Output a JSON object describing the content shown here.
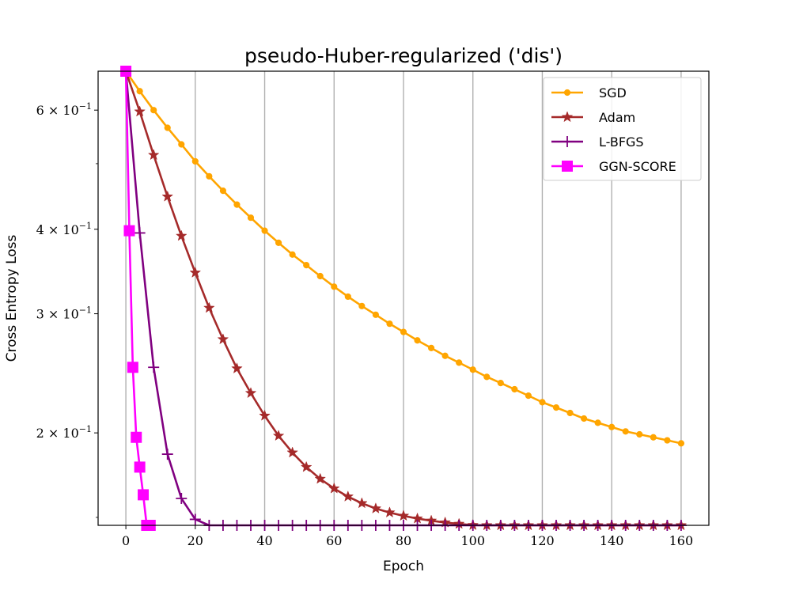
{
  "chart_data": {
    "type": "line",
    "title": "pseudo-Huber-regularized ('dis')",
    "xlabel": "Epoch",
    "ylabel": "Cross Entropy Loss",
    "y_scale": "log",
    "xlim": [
      -8,
      168
    ],
    "ylim": [
      0.146,
      0.685
    ],
    "grid": "vertical",
    "legend_position": "top-right",
    "x_ticks": [
      0,
      20,
      40,
      60,
      80,
      100,
      120,
      140,
      160
    ],
    "y_ticks": [
      {
        "value": 0.6,
        "mantissa": "6",
        "exponent": "−1"
      },
      {
        "value": 0.4,
        "mantissa": "4",
        "exponent": "−1"
      },
      {
        "value": 0.3,
        "mantissa": "3",
        "exponent": "−1"
      },
      {
        "value": 0.2,
        "mantissa": "2",
        "exponent": "−1"
      }
    ],
    "y_tick_base": "10",
    "y_tick_times": "×",
    "series": [
      {
        "name": "SGD",
        "color": "#FFA500",
        "marker": "circle",
        "x": [
          0,
          4,
          8,
          12,
          16,
          20,
          24,
          28,
          32,
          36,
          40,
          44,
          48,
          52,
          56,
          60,
          64,
          68,
          72,
          76,
          80,
          84,
          88,
          92,
          96,
          100,
          104,
          108,
          112,
          116,
          120,
          124,
          128,
          132,
          136,
          140,
          144,
          148,
          152,
          156,
          160
        ],
        "y": [
          0.685,
          0.64,
          0.6,
          0.565,
          0.534,
          0.504,
          0.479,
          0.456,
          0.435,
          0.416,
          0.398,
          0.382,
          0.367,
          0.354,
          0.341,
          0.329,
          0.318,
          0.308,
          0.299,
          0.29,
          0.282,
          0.274,
          0.267,
          0.26,
          0.254,
          0.248,
          0.242,
          0.237,
          0.232,
          0.227,
          0.222,
          0.218,
          0.214,
          0.21,
          0.207,
          0.204,
          0.201,
          0.199,
          0.197,
          0.195,
          0.193
        ]
      },
      {
        "name": "Adam",
        "color": "#A52A2A",
        "marker": "star",
        "x": [
          0,
          4,
          8,
          12,
          16,
          20,
          24,
          28,
          32,
          36,
          40,
          44,
          48,
          52,
          56,
          60,
          64,
          68,
          72,
          76,
          80,
          84,
          88,
          92,
          96,
          100,
          104,
          108,
          112,
          116,
          120,
          124,
          128,
          132,
          136,
          140,
          144,
          148,
          152,
          156,
          160
        ],
        "y": [
          0.685,
          0.597,
          0.515,
          0.447,
          0.391,
          0.345,
          0.306,
          0.275,
          0.249,
          0.229,
          0.212,
          0.198,
          0.187,
          0.178,
          0.171,
          0.1655,
          0.161,
          0.1574,
          0.1546,
          0.1525,
          0.1508,
          0.1494,
          0.1483,
          0.1474,
          0.1467,
          0.1461,
          0.1456,
          0.1452,
          0.1449,
          0.1447,
          0.1445,
          0.1443,
          0.1442,
          0.1441,
          0.144,
          0.144,
          0.1439,
          0.1439,
          0.1439,
          0.1438,
          0.1438
        ]
      },
      {
        "name": "L-BFGS",
        "color": "#800080",
        "marker": "plus",
        "x": [
          0,
          4,
          8,
          12,
          16,
          20,
          24,
          28,
          32,
          36,
          40,
          44,
          48,
          52,
          56,
          60,
          64,
          68,
          72,
          76,
          80,
          84,
          88,
          92,
          96,
          100,
          104,
          108,
          112,
          116,
          120,
          124,
          128,
          132,
          136,
          140,
          144,
          148,
          152,
          156,
          160
        ],
        "y": [
          0.685,
          0.395,
          0.25,
          0.186,
          0.16,
          0.149,
          0.1458,
          0.1449,
          0.1446,
          0.1445,
          0.1445,
          0.1445,
          0.1445,
          0.1445,
          0.1445,
          0.1445,
          0.1445,
          0.1445,
          0.1445,
          0.1445,
          0.1445,
          0.1445,
          0.1445,
          0.1445,
          0.1445,
          0.1445,
          0.1445,
          0.1445,
          0.1445,
          0.1445,
          0.1445,
          0.1445,
          0.1445,
          0.1445,
          0.1445,
          0.1445,
          0.1445,
          0.1445,
          0.1445,
          0.1445,
          0.1445
        ]
      },
      {
        "name": "GGN-SCORE",
        "color": "#FF00FF",
        "marker": "square",
        "x": [
          0,
          1,
          2,
          3,
          4,
          5,
          6,
          7
        ],
        "y": [
          0.685,
          0.398,
          0.25,
          0.197,
          0.178,
          0.162,
          0.145,
          0.145
        ]
      }
    ]
  }
}
